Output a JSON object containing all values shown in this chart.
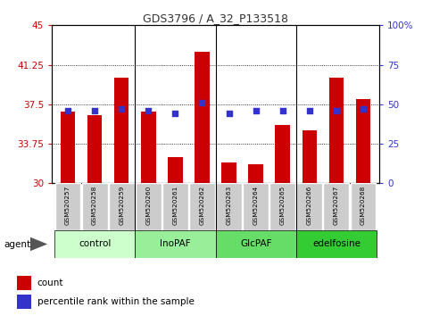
{
  "title": "GDS3796 / A_32_P133518",
  "samples": [
    "GSM520257",
    "GSM520258",
    "GSM520259",
    "GSM520260",
    "GSM520261",
    "GSM520262",
    "GSM520263",
    "GSM520264",
    "GSM520265",
    "GSM520266",
    "GSM520267",
    "GSM520268"
  ],
  "counts": [
    36.8,
    36.5,
    40.0,
    36.8,
    32.5,
    42.5,
    32.0,
    31.8,
    35.5,
    35.0,
    40.0,
    38.0
  ],
  "percentiles": [
    46,
    46,
    47,
    46,
    44,
    51,
    44,
    46,
    46,
    46,
    46,
    47
  ],
  "bar_color": "#cc0000",
  "dot_color": "#3333cc",
  "ylim_left": [
    30,
    45
  ],
  "ylim_right": [
    0,
    100
  ],
  "yticks_left": [
    30,
    33.75,
    37.5,
    41.25,
    45
  ],
  "yticks_right": [
    0,
    25,
    50,
    75,
    100
  ],
  "ytick_labels_left": [
    "30",
    "33.75",
    "37.5",
    "41.25",
    "45"
  ],
  "ytick_labels_right": [
    "0",
    "25",
    "50",
    "75",
    "100%"
  ],
  "left_tick_color": "#cc0000",
  "right_tick_color": "#3333cc",
  "groups": [
    {
      "label": "control",
      "start": 0,
      "end": 3,
      "color": "#ccffcc"
    },
    {
      "label": "InoPAF",
      "start": 3,
      "end": 6,
      "color": "#99ee99"
    },
    {
      "label": "GlcPAF",
      "start": 6,
      "end": 9,
      "color": "#66dd66"
    },
    {
      "label": "edelfosine",
      "start": 9,
      "end": 12,
      "color": "#33cc33"
    }
  ],
  "agent_label": "agent",
  "legend_count_label": "count",
  "legend_pct_label": "percentile rank within the sample",
  "background_color": "#ffffff",
  "plot_bg_color": "#ffffff",
  "grid_color": "#000000",
  "bar_width": 0.55
}
